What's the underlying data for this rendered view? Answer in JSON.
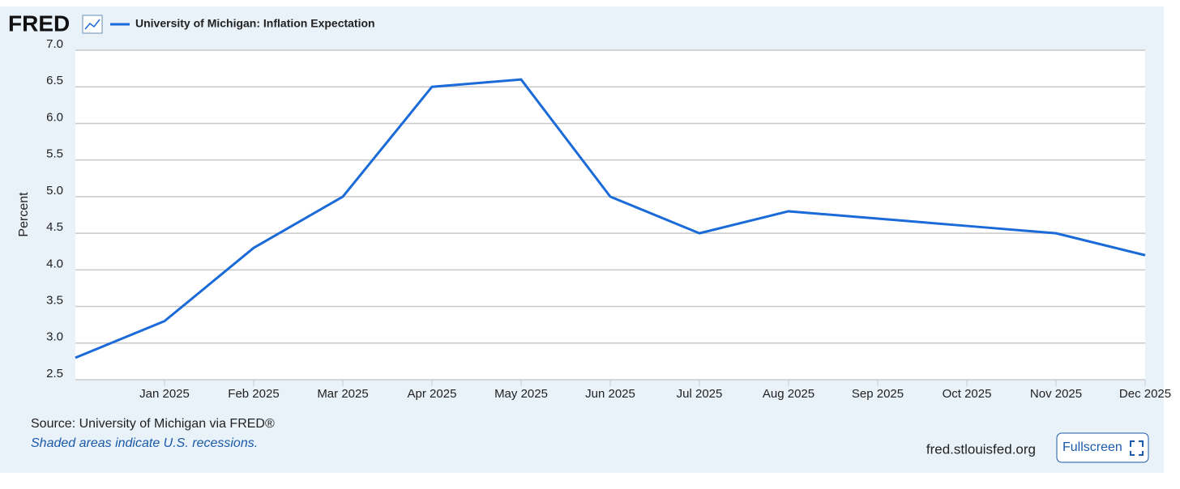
{
  "logo": "FRED",
  "chart_data": {
    "type": "line",
    "categories": [
      null,
      "Jan 2025",
      "Feb 2025",
      "Mar 2025",
      "Apr 2025",
      "May 2025",
      "Jun 2025",
      "Jul 2025",
      "Aug 2025",
      "Sep 2025",
      "Oct 2025",
      "Nov 2025",
      "Dec 2025"
    ],
    "series": [
      {
        "name": "University of Michigan: Inflation Expectation",
        "color": "#1a6ad8",
        "values": [
          2.8,
          3.3,
          4.3,
          5.0,
          6.5,
          6.6,
          5.0,
          4.5,
          4.8,
          4.7,
          4.6,
          4.5,
          4.2
        ]
      }
    ],
    "y_label": "Percent",
    "ylim": [
      2.5,
      7.0
    ],
    "yticks": [
      2.5,
      {
        "value": 3,
        "label": "3.0"
      },
      3.5,
      {
        "value": 4,
        "label": "4.0"
      },
      4.5,
      {
        "value": 5,
        "label": "5.0"
      },
      5.5,
      {
        "value": 6,
        "label": "6.0"
      },
      6.5,
      {
        "value": 7,
        "label": "7.0"
      }
    ],
    "grid": true
  },
  "footer": {
    "source": "Source: University of Michigan via FRED®",
    "note": "Shaded areas indicate U.S. recessions.",
    "site": "fred.stlouisfed.org",
    "button": "Fullscreen"
  }
}
